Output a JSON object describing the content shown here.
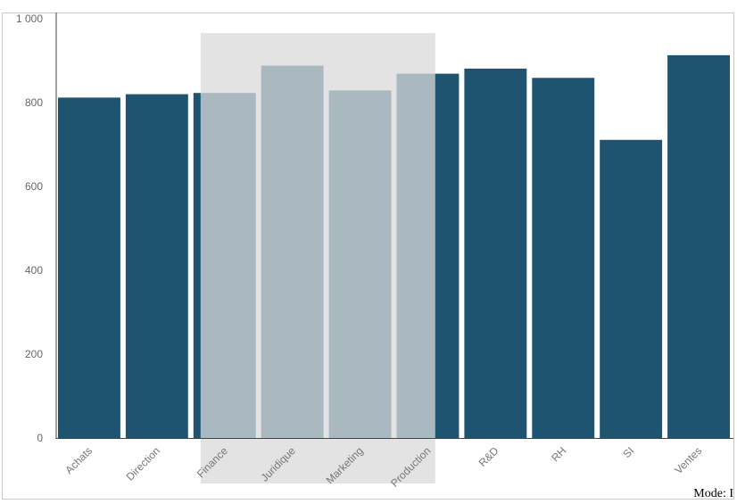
{
  "chart_data": {
    "type": "bar",
    "categories": [
      "Achats",
      "Direction",
      "Finance",
      "Juridique",
      "Marketing",
      "Production",
      "R&D",
      "RH",
      "SI",
      "Ventes"
    ],
    "values": [
      812,
      820,
      823,
      888,
      829,
      869,
      881,
      859,
      711,
      913
    ],
    "ylim": [
      0,
      1000
    ],
    "yticks": [
      0,
      200,
      400,
      600,
      800,
      1000
    ],
    "ytick_labels": [
      "0",
      "200",
      "400",
      "600",
      "800",
      "1 000"
    ],
    "grid": false,
    "selection": {
      "from": "Finance",
      "to": "Production"
    },
    "colors": {
      "bar": "#1f5470",
      "selection": "#d9d9d9",
      "axis": "#444444"
    }
  },
  "status": {
    "mode_label": "Mode: I"
  }
}
